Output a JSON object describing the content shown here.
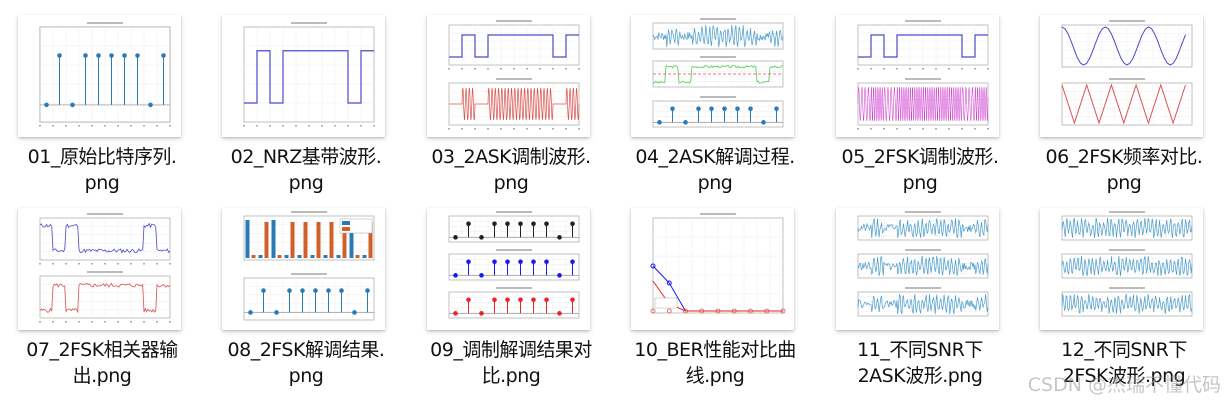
{
  "files": [
    {
      "name_line1": "01_原始比特序列.",
      "name_line2": "png",
      "thumb": "stem",
      "thumb_title": "原始二进制比特序列"
    },
    {
      "name_line1": "02_NRZ基带波形.",
      "name_line2": "png",
      "thumb": "nrz",
      "thumb_title": "NRZ基带信号波形"
    },
    {
      "name_line1": "03_2ASK调制波形.",
      "name_line2": "png",
      "thumb": "ask_mod",
      "thumb_title": "基带NRZ信号 / 2ASK调制信号"
    },
    {
      "name_line1": "04_2ASK解调过程.",
      "name_line2": "png",
      "thumb": "ask_demod",
      "thumb_title": "接收信号（含噪声，SNR = 10 dB）"
    },
    {
      "name_line1": "05_2FSK调制波形.",
      "name_line2": "png",
      "thumb": "fsk_mod",
      "thumb_title": "基带NRZ信号 / 2FSK调制信号"
    },
    {
      "name_line1": "06_2FSK频率对比.",
      "name_line2": "png",
      "thumb": "fsk_freq",
      "thumb_title": "比特'0'对应波形 / 比特'1'对应波形"
    },
    {
      "name_line1": "07_2FSK相关器输",
      "name_line2": "出.png",
      "thumb": "fsk_corr",
      "thumb_title": "相关器输出"
    },
    {
      "name_line1": "08_2FSK解调结果.",
      "name_line2": "png",
      "thumb": "fsk_demod",
      "thumb_title": "判决统计量对比 / 2FSK解调结果，BER = 0"
    },
    {
      "name_line1": "09_调制解调结果对",
      "name_line2": "比.png",
      "thumb": "compare",
      "thumb_title": "原始比特序列 / 2ASK解调结果 / 2FSK解调结果"
    },
    {
      "name_line1": "10_BER性能对比曲",
      "name_line2": "线.png",
      "thumb": "ber",
      "thumb_title": "2ASK与2FSK误码率性能对比"
    },
    {
      "name_line1": "11_不同SNR下",
      "name_line2": "2ASK波形.png",
      "thumb": "ask_snr",
      "thumb_title": "2ASK信号，SNR = 0/5/10 dB"
    },
    {
      "name_line1": "12_不同SNR下",
      "name_line2": "2FSK波形.png",
      "thumb": "fsk_snr",
      "thumb_title": "2FSK信号，SNR = 0/5/10 dB"
    }
  ],
  "bits": [
    0,
    1,
    0,
    1,
    1,
    1,
    1,
    1,
    0,
    1
  ],
  "colors": {
    "stem_blue": "#2a7ab8",
    "nrz_purple": "#4a4ac8",
    "ask_red": "#d9534f",
    "fsk_magenta": "#cc33cc",
    "green": "#55cc55",
    "orange": "#d0602a",
    "noise_blue": "#4a9ccc",
    "black": "#222222",
    "pure_blue": "#1a1aee",
    "pure_red": "#ee2222"
  },
  "watermark": "CSDN @杰瑞不懂代码"
}
